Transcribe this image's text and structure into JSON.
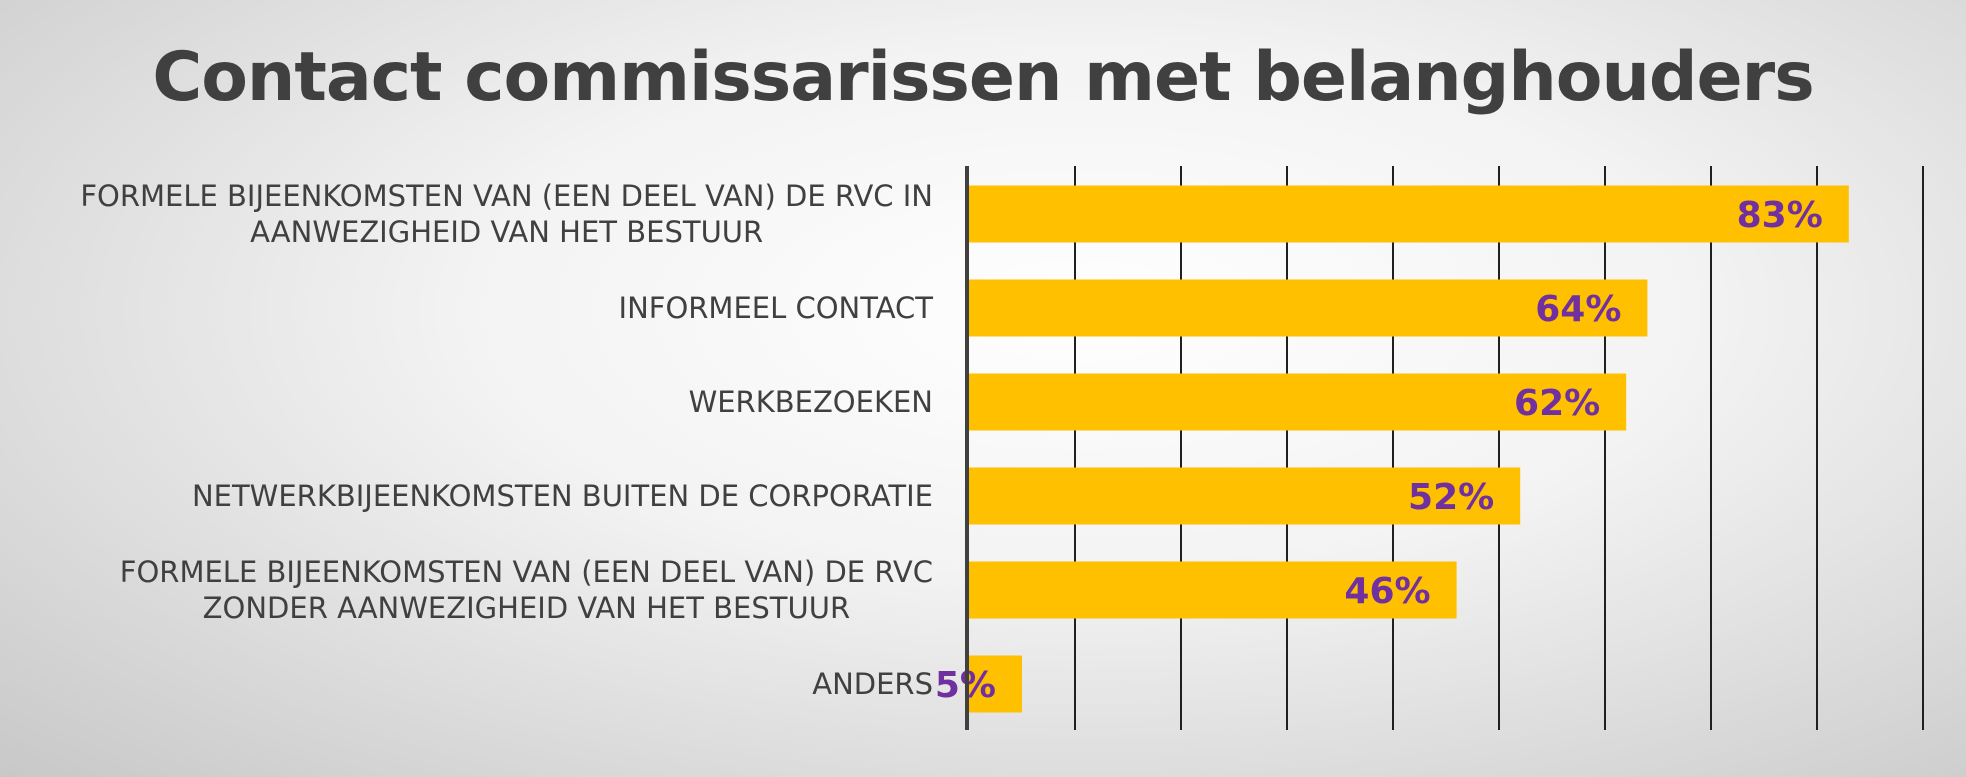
{
  "chart_data": {
    "type": "bar",
    "orientation": "horizontal",
    "title": "Contact commissarissen met belanghouders",
    "categories": [
      "FORMELE BIJEENKOMSTEN VAN (EEN DEEL VAN) DE RVC IN AANWEZIGHEID VAN HET BESTUUR",
      "INFORMEEL CONTACT",
      "WERKBEZOEKEN",
      "NETWERKBIJEENKOMSTEN BUITEN DE CORPORATIE",
      "FORMELE BIJEENKOMSTEN VAN (EEN DEEL VAN) DE RVC ZONDER AANWEZIGHEID VAN HET BESTUUR",
      "ANDERS"
    ],
    "category_lines": [
      [
        "FORMELE BIJEENKOMSTEN VAN (EEN DEEL VAN) DE RVC IN",
        "AANWEZIGHEID VAN HET BESTUUR"
      ],
      [
        "INFORMEEL CONTACT"
      ],
      [
        "WERKBEZOEKEN"
      ],
      [
        "NETWERKBIJEENKOMSTEN BUITEN DE CORPORATIE"
      ],
      [
        "FORMELE BIJEENKOMSTEN VAN (EEN DEEL VAN) DE RVC",
        "ZONDER AANWEZIGHEID VAN HET BESTUUR"
      ],
      [
        "ANDERS"
      ]
    ],
    "values": [
      83,
      64,
      62,
      52,
      46,
      5
    ],
    "value_labels": [
      "83%",
      "64%",
      "62%",
      "52%",
      "46%",
      "5%"
    ],
    "xlim": [
      0,
      90
    ],
    "grid_step": 10,
    "grid": "vertical",
    "legend": "none",
    "bar_color": "#ffc000",
    "label_color": "#7030a0"
  }
}
